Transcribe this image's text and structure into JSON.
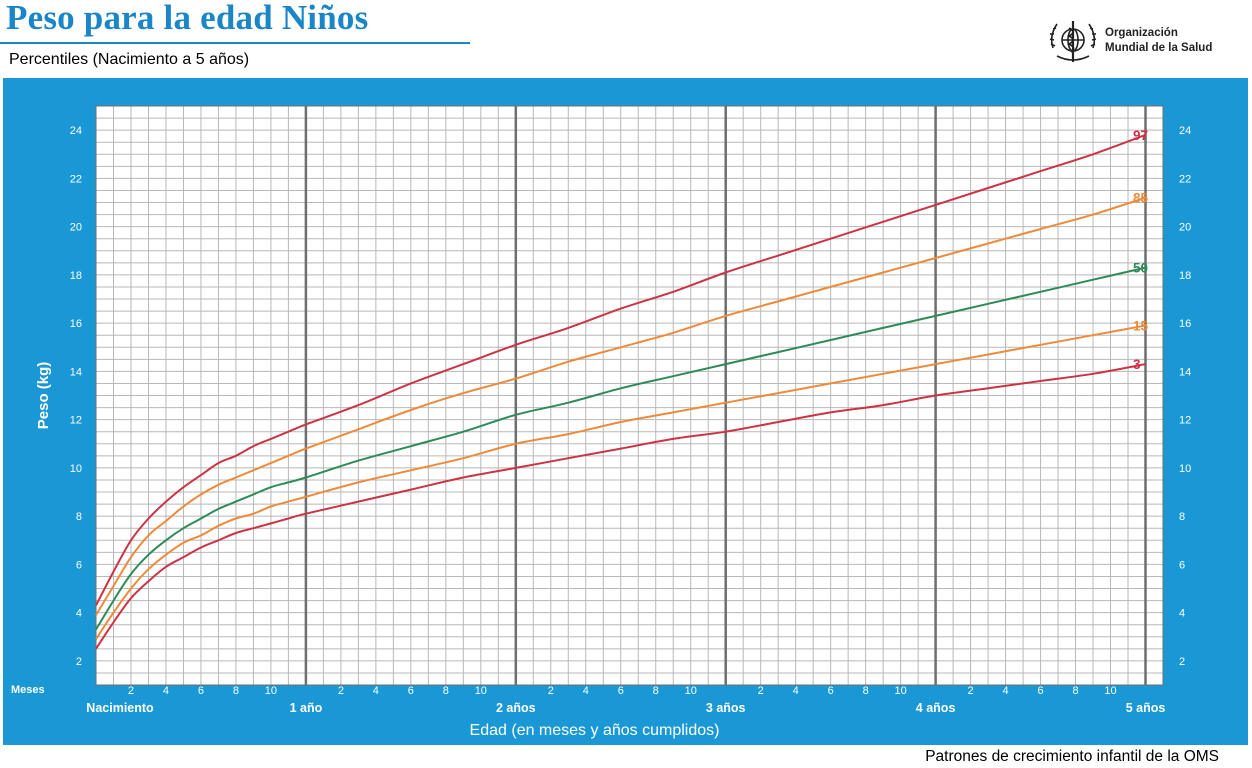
{
  "header": {
    "title": "Peso para la edad Niños",
    "subtitle": "Percentiles (Nacimiento a 5 años)",
    "org_line1": "Organización",
    "org_line2": "Mundial de la Salud",
    "logo_icon": "who-emblem-icon"
  },
  "footer": {
    "text": "Patrones de crecimiento infantil de la OMS"
  },
  "colors": {
    "panel": "#1a98d5",
    "title": "#1a86c8",
    "grid_minor": "#b8b8b8",
    "grid_major": "#6e6e6e",
    "p3_p97": "#cc3344",
    "p15_p85": "#ee8a3a",
    "p50": "#2e8b57"
  },
  "chart_data": {
    "type": "line",
    "title": "Peso para la edad Niños",
    "subtitle": "Percentiles (Nacimiento a 5 años)",
    "xlabel": "Edad (en meses y años cumplidos)",
    "ylabel": "Peso (kg)",
    "months_label": "Meses",
    "xlim": [
      0,
      60
    ],
    "ylim": [
      1,
      25
    ],
    "y_ticks": [
      2,
      4,
      6,
      8,
      10,
      12,
      14,
      16,
      18,
      20,
      22,
      24
    ],
    "x_month_ticks": [
      "2",
      "4",
      "6",
      "8",
      "10"
    ],
    "x_year_labels": [
      {
        "month": 0,
        "label": "Nacimiento"
      },
      {
        "month": 12,
        "label": "1 año"
      },
      {
        "month": 24,
        "label": "2 años"
      },
      {
        "month": 36,
        "label": "3 años"
      },
      {
        "month": 48,
        "label": "4 años"
      },
      {
        "month": 60,
        "label": "5 años"
      }
    ],
    "grid": true,
    "x": [
      0,
      1,
      2,
      3,
      4,
      5,
      6,
      7,
      8,
      9,
      10,
      11,
      12,
      15,
      18,
      21,
      24,
      27,
      30,
      33,
      36,
      39,
      42,
      45,
      48,
      51,
      54,
      57,
      60
    ],
    "series": [
      {
        "name": "97",
        "color": "#cc3344",
        "values": [
          4.3,
          5.7,
          7.0,
          7.9,
          8.6,
          9.2,
          9.7,
          10.2,
          10.5,
          10.9,
          11.2,
          11.5,
          11.8,
          12.6,
          13.5,
          14.3,
          15.1,
          15.8,
          16.6,
          17.3,
          18.1,
          18.8,
          19.5,
          20.2,
          20.9,
          21.6,
          22.3,
          23.0,
          23.8
        ]
      },
      {
        "name": "85",
        "color": "#ee8a3a",
        "values": [
          3.9,
          5.1,
          6.3,
          7.2,
          7.8,
          8.4,
          8.9,
          9.3,
          9.6,
          9.9,
          10.2,
          10.5,
          10.8,
          11.6,
          12.4,
          13.1,
          13.7,
          14.4,
          15.0,
          15.6,
          16.3,
          16.9,
          17.5,
          18.1,
          18.7,
          19.3,
          19.9,
          20.5,
          21.2
        ]
      },
      {
        "name": "50",
        "color": "#2e8b57",
        "values": [
          3.3,
          4.5,
          5.6,
          6.4,
          7.0,
          7.5,
          7.9,
          8.3,
          8.6,
          8.9,
          9.2,
          9.4,
          9.6,
          10.3,
          10.9,
          11.5,
          12.2,
          12.7,
          13.3,
          13.8,
          14.3,
          14.8,
          15.3,
          15.8,
          16.3,
          16.8,
          17.3,
          17.8,
          18.3
        ]
      },
      {
        "name": "15",
        "color": "#ee8a3a",
        "values": [
          2.9,
          4.0,
          5.0,
          5.8,
          6.4,
          6.9,
          7.2,
          7.6,
          7.9,
          8.1,
          8.4,
          8.6,
          8.8,
          9.4,
          9.9,
          10.4,
          11.0,
          11.4,
          11.9,
          12.3,
          12.7,
          13.1,
          13.5,
          13.9,
          14.3,
          14.7,
          15.1,
          15.5,
          15.9
        ]
      },
      {
        "name": "3",
        "color": "#cc3344",
        "values": [
          2.5,
          3.6,
          4.6,
          5.3,
          5.9,
          6.3,
          6.7,
          7.0,
          7.3,
          7.5,
          7.7,
          7.9,
          8.1,
          8.6,
          9.1,
          9.6,
          10.0,
          10.4,
          10.8,
          11.2,
          11.5,
          11.9,
          12.3,
          12.6,
          13.0,
          13.3,
          13.6,
          13.9,
          14.3
        ]
      }
    ]
  }
}
